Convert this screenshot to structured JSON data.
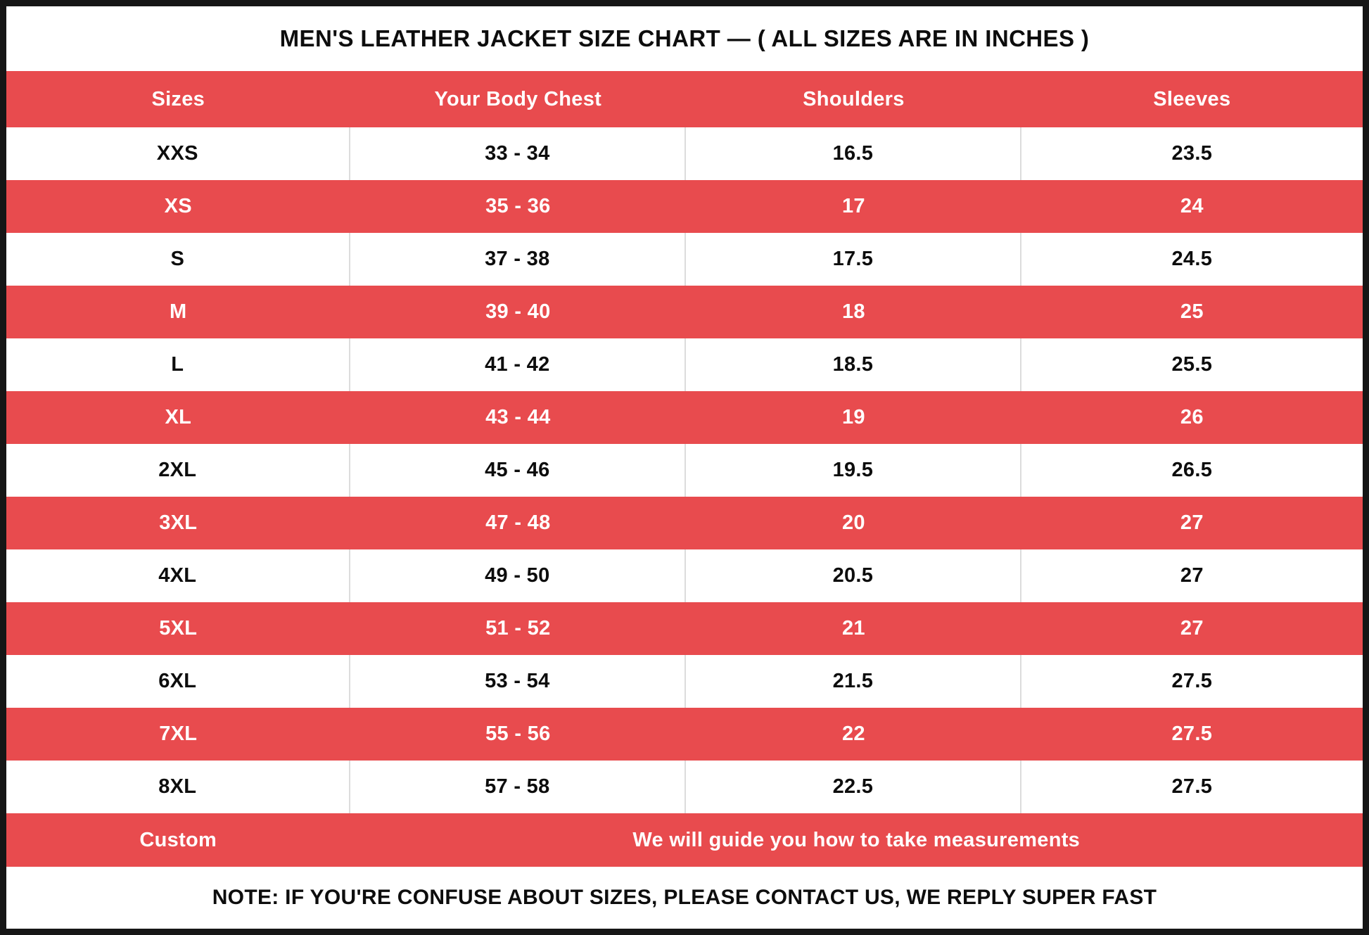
{
  "colors": {
    "accent_red": "#E84B4E",
    "body_text": "#0D0D0D",
    "divider_gray": "#DCDCDC",
    "frame_black": "#161616"
  },
  "chart_data": {
    "type": "table",
    "title": "MEN'S LEATHER JACKET SIZE CHART — ( ALL SIZES ARE IN INCHES )",
    "columns": [
      "Sizes",
      "Your Body Chest",
      "Shoulders",
      "Sleeves"
    ],
    "rows": [
      [
        "XXS",
        "33 - 34",
        "16.5",
        "23.5"
      ],
      [
        "XS",
        "35 - 36",
        "17",
        "24"
      ],
      [
        "S",
        "37 - 38",
        "17.5",
        "24.5"
      ],
      [
        "M",
        "39 - 40",
        "18",
        "25"
      ],
      [
        "L",
        "41 - 42",
        "18.5",
        "25.5"
      ],
      [
        "XL",
        "43 - 44",
        "19",
        "26"
      ],
      [
        "2XL",
        "45 - 46",
        "19.5",
        "26.5"
      ],
      [
        "3XL",
        "47 - 48",
        "20",
        "27"
      ],
      [
        "4XL",
        "49 - 50",
        "20.5",
        "27"
      ],
      [
        "5XL",
        "51 - 52",
        "21",
        "27"
      ],
      [
        "6XL",
        "53 - 54",
        "21.5",
        "27.5"
      ],
      [
        "7XL",
        "55 - 56",
        "22",
        "27.5"
      ],
      [
        "8XL",
        "57 - 58",
        "22.5",
        "27.5"
      ]
    ],
    "custom_row": {
      "label": "Custom",
      "message": "We will guide you how to take measurements"
    },
    "footnote": "NOTE: IF YOU'RE CONFUSE ABOUT SIZES, PLEASE CONTACT US, WE REPLY SUPER FAST",
    "layout_hints": {
      "row_striping": "white-red alternating",
      "grid": "column dividers on white rows only"
    }
  }
}
